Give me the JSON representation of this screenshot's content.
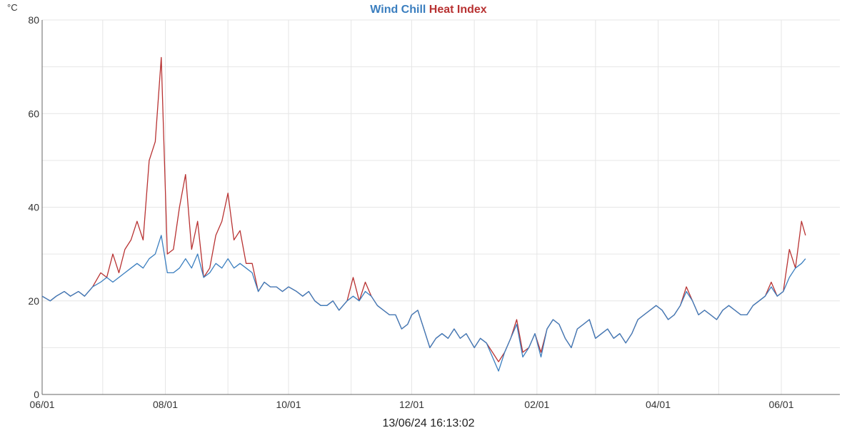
{
  "chart_data": {
    "type": "line",
    "title_parts": [
      {
        "text": "Wind Chill",
        "color": "#3a7ebf"
      },
      {
        "text": "Heat Index",
        "color": "#b83232"
      }
    ],
    "y_unit": "°C",
    "ylim": [
      0,
      80
    ],
    "y_ticks": [
      "0",
      "20",
      "40",
      "60",
      "80"
    ],
    "x_range": [
      "2023-06-01",
      "2024-06-30"
    ],
    "x_ticks": [
      {
        "date": "2023-06-01",
        "label": "06/01"
      },
      {
        "date": "2023-08-01",
        "label": "08/01"
      },
      {
        "date": "2023-10-01",
        "label": "10/01"
      },
      {
        "date": "2023-12-01",
        "label": "12/01"
      },
      {
        "date": "2024-02-01",
        "label": "02/01"
      },
      {
        "date": "2024-04-01",
        "label": "04/01"
      },
      {
        "date": "2024-06-01",
        "label": "06/01"
      }
    ],
    "grid": true,
    "footer": "13/06/24 16:13:02",
    "series": [
      {
        "name": "Wind Chill",
        "color": "#3a7ebf",
        "points": [
          [
            "2023-06-01",
            21
          ],
          [
            "2023-06-05",
            20
          ],
          [
            "2023-06-08",
            21
          ],
          [
            "2023-06-12",
            22
          ],
          [
            "2023-06-15",
            21
          ],
          [
            "2023-06-19",
            22
          ],
          [
            "2023-06-22",
            21
          ],
          [
            "2023-06-26",
            23
          ],
          [
            "2023-06-30",
            24
          ],
          [
            "2023-07-03",
            25
          ],
          [
            "2023-07-06",
            24
          ],
          [
            "2023-07-09",
            25
          ],
          [
            "2023-07-12",
            26
          ],
          [
            "2023-07-15",
            27
          ],
          [
            "2023-07-18",
            28
          ],
          [
            "2023-07-21",
            27
          ],
          [
            "2023-07-24",
            29
          ],
          [
            "2023-07-27",
            30
          ],
          [
            "2023-07-30",
            34
          ],
          [
            "2023-08-02",
            26
          ],
          [
            "2023-08-05",
            26
          ],
          [
            "2023-08-08",
            27
          ],
          [
            "2023-08-11",
            29
          ],
          [
            "2023-08-14",
            27
          ],
          [
            "2023-08-17",
            30
          ],
          [
            "2023-08-20",
            25
          ],
          [
            "2023-08-23",
            26
          ],
          [
            "2023-08-26",
            28
          ],
          [
            "2023-08-29",
            27
          ],
          [
            "2023-09-01",
            29
          ],
          [
            "2023-09-04",
            27
          ],
          [
            "2023-09-07",
            28
          ],
          [
            "2023-09-10",
            27
          ],
          [
            "2023-09-13",
            26
          ],
          [
            "2023-09-16",
            22
          ],
          [
            "2023-09-19",
            24
          ],
          [
            "2023-09-22",
            23
          ],
          [
            "2023-09-25",
            23
          ],
          [
            "2023-09-28",
            22
          ],
          [
            "2023-10-01",
            23
          ],
          [
            "2023-10-05",
            22
          ],
          [
            "2023-10-08",
            21
          ],
          [
            "2023-10-11",
            22
          ],
          [
            "2023-10-14",
            20
          ],
          [
            "2023-10-17",
            19
          ],
          [
            "2023-10-20",
            19
          ],
          [
            "2023-10-23",
            20
          ],
          [
            "2023-10-26",
            18
          ],
          [
            "2023-10-30",
            20
          ],
          [
            "2023-11-02",
            21
          ],
          [
            "2023-11-05",
            20
          ],
          [
            "2023-11-08",
            22
          ],
          [
            "2023-11-11",
            21
          ],
          [
            "2023-11-14",
            19
          ],
          [
            "2023-11-17",
            18
          ],
          [
            "2023-11-20",
            17
          ],
          [
            "2023-11-23",
            17
          ],
          [
            "2023-11-26",
            14
          ],
          [
            "2023-11-29",
            15
          ],
          [
            "2023-12-01",
            17
          ],
          [
            "2023-12-04",
            18
          ],
          [
            "2023-12-07",
            14
          ],
          [
            "2023-12-10",
            10
          ],
          [
            "2023-12-13",
            12
          ],
          [
            "2023-12-16",
            13
          ],
          [
            "2023-12-19",
            12
          ],
          [
            "2023-12-22",
            14
          ],
          [
            "2023-12-25",
            12
          ],
          [
            "2023-12-28",
            13
          ],
          [
            "2024-01-01",
            10
          ],
          [
            "2024-01-04",
            12
          ],
          [
            "2024-01-07",
            11
          ],
          [
            "2024-01-10",
            8
          ],
          [
            "2024-01-13",
            5
          ],
          [
            "2024-01-16",
            9
          ],
          [
            "2024-01-19",
            12
          ],
          [
            "2024-01-22",
            15
          ],
          [
            "2024-01-25",
            8
          ],
          [
            "2024-01-28",
            10
          ],
          [
            "2024-01-31",
            13
          ],
          [
            "2024-02-03",
            8
          ],
          [
            "2024-02-06",
            14
          ],
          [
            "2024-02-09",
            16
          ],
          [
            "2024-02-12",
            15
          ],
          [
            "2024-02-15",
            12
          ],
          [
            "2024-02-18",
            10
          ],
          [
            "2024-02-21",
            14
          ],
          [
            "2024-02-24",
            15
          ],
          [
            "2024-02-27",
            16
          ],
          [
            "2024-03-01",
            12
          ],
          [
            "2024-03-04",
            13
          ],
          [
            "2024-03-07",
            14
          ],
          [
            "2024-03-10",
            12
          ],
          [
            "2024-03-13",
            13
          ],
          [
            "2024-03-16",
            11
          ],
          [
            "2024-03-19",
            13
          ],
          [
            "2024-03-22",
            16
          ],
          [
            "2024-03-25",
            17
          ],
          [
            "2024-03-28",
            18
          ],
          [
            "2024-03-31",
            19
          ],
          [
            "2024-04-03",
            18
          ],
          [
            "2024-04-06",
            16
          ],
          [
            "2024-04-09",
            17
          ],
          [
            "2024-04-12",
            19
          ],
          [
            "2024-04-15",
            22
          ],
          [
            "2024-04-18",
            20
          ],
          [
            "2024-04-21",
            17
          ],
          [
            "2024-04-24",
            18
          ],
          [
            "2024-04-27",
            17
          ],
          [
            "2024-04-30",
            16
          ],
          [
            "2024-05-03",
            18
          ],
          [
            "2024-05-06",
            19
          ],
          [
            "2024-05-09",
            18
          ],
          [
            "2024-05-12",
            17
          ],
          [
            "2024-05-15",
            17
          ],
          [
            "2024-05-18",
            19
          ],
          [
            "2024-05-21",
            20
          ],
          [
            "2024-05-24",
            21
          ],
          [
            "2024-05-27",
            23
          ],
          [
            "2024-05-30",
            21
          ],
          [
            "2024-06-02",
            22
          ],
          [
            "2024-06-05",
            25
          ],
          [
            "2024-06-08",
            27
          ],
          [
            "2024-06-11",
            28
          ],
          [
            "2024-06-13",
            29
          ]
        ]
      },
      {
        "name": "Heat Index",
        "color": "#b83232",
        "points": [
          [
            "2023-06-01",
            21
          ],
          [
            "2023-06-05",
            20
          ],
          [
            "2023-06-08",
            21
          ],
          [
            "2023-06-12",
            22
          ],
          [
            "2023-06-15",
            21
          ],
          [
            "2023-06-19",
            22
          ],
          [
            "2023-06-22",
            21
          ],
          [
            "2023-06-26",
            23
          ],
          [
            "2023-06-30",
            26
          ],
          [
            "2023-07-03",
            25
          ],
          [
            "2023-07-06",
            30
          ],
          [
            "2023-07-09",
            26
          ],
          [
            "2023-07-12",
            31
          ],
          [
            "2023-07-15",
            33
          ],
          [
            "2023-07-18",
            37
          ],
          [
            "2023-07-21",
            33
          ],
          [
            "2023-07-24",
            50
          ],
          [
            "2023-07-27",
            54
          ],
          [
            "2023-07-30",
            72
          ],
          [
            "2023-08-02",
            30
          ],
          [
            "2023-08-05",
            31
          ],
          [
            "2023-08-08",
            40
          ],
          [
            "2023-08-11",
            47
          ],
          [
            "2023-08-14",
            31
          ],
          [
            "2023-08-17",
            37
          ],
          [
            "2023-08-20",
            25
          ],
          [
            "2023-08-23",
            27
          ],
          [
            "2023-08-26",
            34
          ],
          [
            "2023-08-29",
            37
          ],
          [
            "2023-09-01",
            43
          ],
          [
            "2023-09-04",
            33
          ],
          [
            "2023-09-07",
            35
          ],
          [
            "2023-09-10",
            28
          ],
          [
            "2023-09-13",
            28
          ],
          [
            "2023-09-16",
            22
          ],
          [
            "2023-09-19",
            24
          ],
          [
            "2023-09-22",
            23
          ],
          [
            "2023-09-25",
            23
          ],
          [
            "2023-09-28",
            22
          ],
          [
            "2023-10-01",
            23
          ],
          [
            "2023-10-05",
            22
          ],
          [
            "2023-10-08",
            21
          ],
          [
            "2023-10-11",
            22
          ],
          [
            "2023-10-14",
            20
          ],
          [
            "2023-10-17",
            19
          ],
          [
            "2023-10-20",
            19
          ],
          [
            "2023-10-23",
            20
          ],
          [
            "2023-10-26",
            18
          ],
          [
            "2023-10-30",
            20
          ],
          [
            "2023-11-02",
            25
          ],
          [
            "2023-11-05",
            20
          ],
          [
            "2023-11-08",
            24
          ],
          [
            "2023-11-11",
            21
          ],
          [
            "2023-11-14",
            19
          ],
          [
            "2023-11-17",
            18
          ],
          [
            "2023-11-20",
            17
          ],
          [
            "2023-11-23",
            17
          ],
          [
            "2023-11-26",
            14
          ],
          [
            "2023-11-29",
            15
          ],
          [
            "2023-12-01",
            17
          ],
          [
            "2023-12-04",
            18
          ],
          [
            "2023-12-07",
            14
          ],
          [
            "2023-12-10",
            10
          ],
          [
            "2023-12-13",
            12
          ],
          [
            "2023-12-16",
            13
          ],
          [
            "2023-12-19",
            12
          ],
          [
            "2023-12-22",
            14
          ],
          [
            "2023-12-25",
            12
          ],
          [
            "2023-12-28",
            13
          ],
          [
            "2024-01-01",
            10
          ],
          [
            "2024-01-04",
            12
          ],
          [
            "2024-01-07",
            11
          ],
          [
            "2024-01-10",
            9
          ],
          [
            "2024-01-13",
            7
          ],
          [
            "2024-01-16",
            9
          ],
          [
            "2024-01-19",
            12
          ],
          [
            "2024-01-22",
            16
          ],
          [
            "2024-01-25",
            9
          ],
          [
            "2024-01-28",
            10
          ],
          [
            "2024-01-31",
            13
          ],
          [
            "2024-02-03",
            9
          ],
          [
            "2024-02-06",
            14
          ],
          [
            "2024-02-09",
            16
          ],
          [
            "2024-02-12",
            15
          ],
          [
            "2024-02-15",
            12
          ],
          [
            "2024-02-18",
            10
          ],
          [
            "2024-02-21",
            14
          ],
          [
            "2024-02-24",
            15
          ],
          [
            "2024-02-27",
            16
          ],
          [
            "2024-03-01",
            12
          ],
          [
            "2024-03-04",
            13
          ],
          [
            "2024-03-07",
            14
          ],
          [
            "2024-03-10",
            12
          ],
          [
            "2024-03-13",
            13
          ],
          [
            "2024-03-16",
            11
          ],
          [
            "2024-03-19",
            13
          ],
          [
            "2024-03-22",
            16
          ],
          [
            "2024-03-25",
            17
          ],
          [
            "2024-03-28",
            18
          ],
          [
            "2024-03-31",
            19
          ],
          [
            "2024-04-03",
            18
          ],
          [
            "2024-04-06",
            16
          ],
          [
            "2024-04-09",
            17
          ],
          [
            "2024-04-12",
            19
          ],
          [
            "2024-04-15",
            23
          ],
          [
            "2024-04-18",
            20
          ],
          [
            "2024-04-21",
            17
          ],
          [
            "2024-04-24",
            18
          ],
          [
            "2024-04-27",
            17
          ],
          [
            "2024-04-30",
            16
          ],
          [
            "2024-05-03",
            18
          ],
          [
            "2024-05-06",
            19
          ],
          [
            "2024-05-09",
            18
          ],
          [
            "2024-05-12",
            17
          ],
          [
            "2024-05-15",
            17
          ],
          [
            "2024-05-18",
            19
          ],
          [
            "2024-05-21",
            20
          ],
          [
            "2024-05-24",
            21
          ],
          [
            "2024-05-27",
            24
          ],
          [
            "2024-05-30",
            21
          ],
          [
            "2024-06-02",
            22
          ],
          [
            "2024-06-05",
            31
          ],
          [
            "2024-06-08",
            27
          ],
          [
            "2024-06-11",
            37
          ],
          [
            "2024-06-13",
            34
          ]
        ]
      }
    ]
  }
}
